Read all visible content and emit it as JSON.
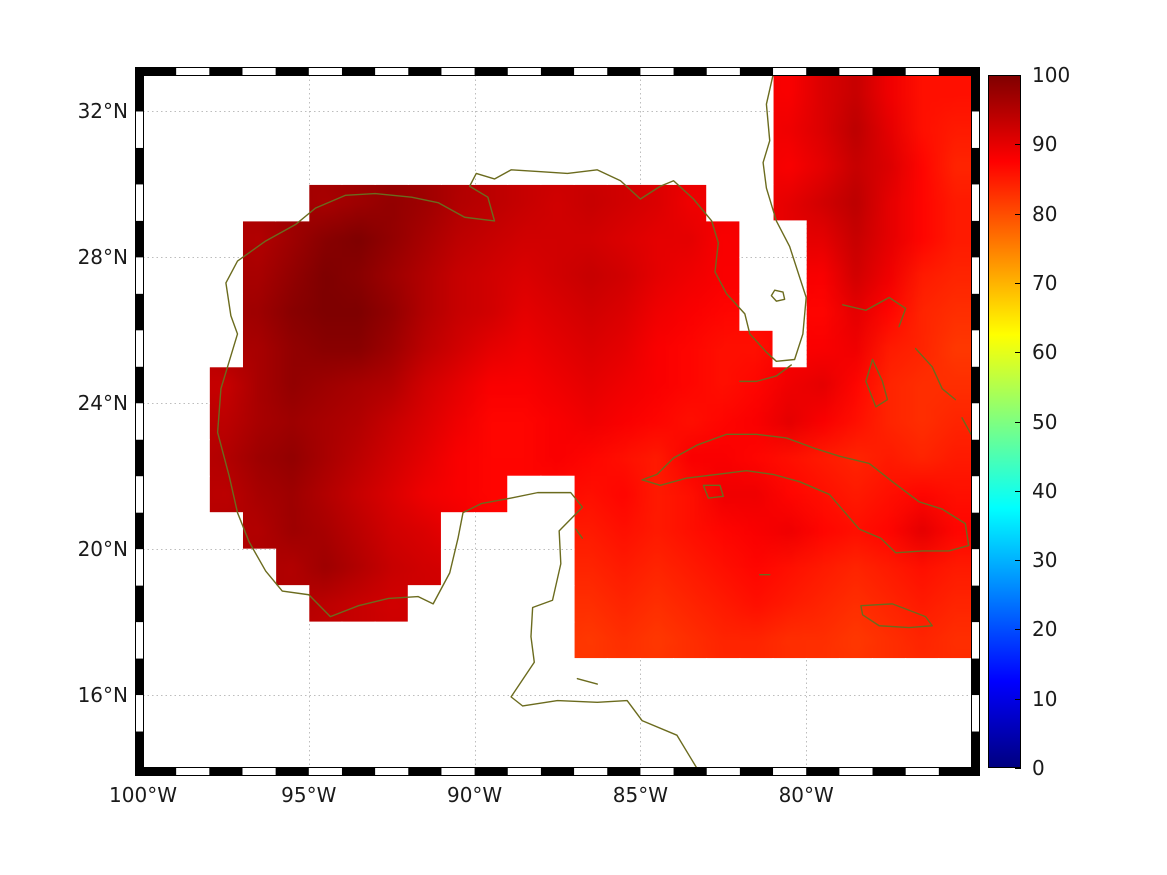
{
  "figure": {
    "background": "#ffffff",
    "frame_color": "#000000",
    "grid_color": "#bdbdbd",
    "coast_color": "#6b6b1e",
    "nodata_color": "#ffffff"
  },
  "axes": {
    "x": {
      "ticks": [
        {
          "lon": -100,
          "label": "100°W"
        },
        {
          "lon": -95,
          "label": "95°W"
        },
        {
          "lon": -90,
          "label": "90°W"
        },
        {
          "lon": -85,
          "label": "85°W"
        },
        {
          "lon": -80,
          "label": "80°W"
        }
      ]
    },
    "y": {
      "ticks": [
        {
          "lat": 32,
          "label": "32°N"
        },
        {
          "lat": 28,
          "label": "28°N"
        },
        {
          "lat": 24,
          "label": "24°N"
        },
        {
          "lat": 20,
          "label": "20°N"
        },
        {
          "lat": 16,
          "label": "16°N"
        }
      ]
    }
  },
  "colorbar": {
    "min": 0,
    "max": 100,
    "ticks": [
      0,
      10,
      20,
      30,
      40,
      50,
      60,
      70,
      80,
      90,
      100
    ],
    "colormap": "jet",
    "stops": [
      [
        0.0,
        "#00007f"
      ],
      [
        0.125,
        "#0000ff"
      ],
      [
        0.375,
        "#00ffff"
      ],
      [
        0.625,
        "#ffff00"
      ],
      [
        0.875,
        "#ff0000"
      ],
      [
        1.0,
        "#7f0000"
      ]
    ]
  },
  "chart_data": {
    "type": "heatmap",
    "region": "Gulf of Mexico and northwestern Caribbean",
    "value_range": [
      0,
      100
    ],
    "colormap": "jet",
    "grid_on": true,
    "legend_position": "right-colorbar",
    "extent": {
      "lon_min": -100,
      "lon_max": -75,
      "lat_min": 14,
      "lat_max": 33
    },
    "grid": {
      "lon0": -100,
      "dlon": 1,
      "lat0": 33,
      "dlat": -1,
      "ncols": 25,
      "nrows": 19,
      "values": [
        [
          null,
          null,
          null,
          null,
          null,
          null,
          null,
          null,
          null,
          null,
          null,
          null,
          null,
          null,
          null,
          null,
          null,
          null,
          null,
          88,
          91,
          93,
          89,
          86,
          86
        ],
        [
          null,
          null,
          null,
          null,
          null,
          null,
          null,
          null,
          null,
          null,
          null,
          null,
          null,
          null,
          null,
          null,
          null,
          null,
          null,
          89,
          91,
          94,
          90,
          86,
          85
        ],
        [
          null,
          null,
          null,
          null,
          null,
          null,
          null,
          null,
          null,
          null,
          null,
          null,
          null,
          null,
          null,
          null,
          null,
          null,
          null,
          88,
          90,
          93,
          91,
          87,
          84
        ],
        [
          null,
          null,
          null,
          null,
          null,
          96,
          97,
          98,
          97,
          95,
          94,
          93,
          92,
          93,
          92,
          91,
          89,
          null,
          null,
          90,
          92,
          94,
          90,
          87,
          85
        ],
        [
          null,
          null,
          null,
          95,
          97,
          99,
          100,
          98,
          96,
          94,
          93,
          92,
          92,
          92,
          91,
          90,
          90,
          88,
          null,
          null,
          90,
          93,
          90,
          87,
          85
        ],
        [
          null,
          null,
          null,
          96,
          98,
          100,
          99,
          97,
          95,
          93,
          92,
          91,
          92,
          93,
          92,
          90,
          89,
          88,
          null,
          null,
          88,
          92,
          89,
          85,
          84
        ],
        [
          null,
          null,
          null,
          97,
          99,
          100,
          100,
          98,
          95,
          93,
          92,
          90,
          91,
          92,
          91,
          89,
          88,
          87,
          null,
          null,
          87,
          90,
          87,
          84,
          83
        ],
        [
          null,
          null,
          null,
          96,
          98,
          99,
          99,
          97,
          94,
          92,
          90,
          89,
          90,
          91,
          90,
          88,
          87,
          86,
          86,
          null,
          88,
          89,
          85,
          84,
          82
        ],
        [
          null,
          null,
          93,
          96,
          98,
          97,
          96,
          95,
          92,
          90,
          88,
          88,
          89,
          90,
          89,
          88,
          87,
          86,
          87,
          89,
          90,
          87,
          84,
          83,
          83
        ],
        [
          null,
          null,
          94,
          96,
          97,
          96,
          95,
          93,
          91,
          89,
          87,
          87,
          88,
          89,
          88,
          87,
          86,
          87,
          88,
          90,
          88,
          86,
          84,
          83,
          84
        ],
        [
          null,
          null,
          95,
          97,
          98,
          96,
          94,
          92,
          90,
          88,
          87,
          87,
          88,
          87,
          86,
          85,
          88,
          88,
          87,
          86,
          85,
          84,
          85,
          84,
          85
        ],
        [
          null,
          null,
          94,
          96,
          97,
          95,
          93,
          91,
          89,
          88,
          87,
          null,
          null,
          86,
          87,
          85,
          86,
          89,
          89,
          87,
          86,
          85,
          86,
          87,
          86
        ],
        [
          null,
          null,
          null,
          95,
          97,
          96,
          94,
          92,
          91,
          null,
          null,
          null,
          null,
          85,
          86,
          85,
          86,
          87,
          88,
          89,
          87,
          86,
          87,
          90,
          87
        ],
        [
          null,
          null,
          null,
          null,
          95,
          97,
          95,
          93,
          92,
          null,
          null,
          null,
          null,
          84,
          85,
          84,
          85,
          86,
          87,
          86,
          85,
          84,
          85,
          86,
          85
        ],
        [
          null,
          null,
          null,
          null,
          null,
          94,
          93,
          92,
          null,
          null,
          null,
          null,
          null,
          83,
          84,
          83,
          84,
          85,
          86,
          85,
          84,
          83,
          84,
          85,
          84
        ],
        [
          null,
          null,
          null,
          null,
          null,
          null,
          null,
          null,
          null,
          null,
          null,
          null,
          null,
          82,
          83,
          82,
          83,
          84,
          84,
          83,
          83,
          82,
          83,
          84,
          83
        ],
        [
          null,
          null,
          null,
          null,
          null,
          null,
          null,
          null,
          null,
          null,
          null,
          null,
          null,
          null,
          null,
          null,
          null,
          null,
          null,
          null,
          null,
          null,
          null,
          null,
          null
        ],
        [
          null,
          null,
          null,
          null,
          null,
          null,
          null,
          null,
          null,
          null,
          null,
          null,
          null,
          null,
          null,
          null,
          null,
          null,
          null,
          null,
          null,
          null,
          null,
          null,
          null
        ],
        [
          null,
          null,
          null,
          null,
          null,
          null,
          null,
          null,
          null,
          null,
          null,
          null,
          null,
          null,
          null,
          null,
          null,
          null,
          null,
          null,
          null,
          null,
          null,
          null,
          null
        ]
      ]
    },
    "coastlines": [
      {
        "name": "north-america-mainland",
        "points": [
          [
            -81.0,
            33.0
          ],
          [
            -81.2,
            32.2
          ],
          [
            -81.1,
            31.2
          ],
          [
            -81.3,
            30.6
          ],
          [
            -81.2,
            29.9
          ],
          [
            -80.9,
            29.0
          ],
          [
            -80.5,
            28.3
          ],
          [
            -80.0,
            26.9
          ],
          [
            -80.1,
            25.9
          ],
          [
            -80.35,
            25.2
          ],
          [
            -80.9,
            25.15
          ],
          [
            -81.2,
            25.4
          ],
          [
            -81.7,
            25.9
          ],
          [
            -81.85,
            26.45
          ],
          [
            -82.4,
            27.0
          ],
          [
            -82.75,
            27.6
          ],
          [
            -82.65,
            28.4
          ],
          [
            -82.85,
            29.0
          ],
          [
            -83.4,
            29.6
          ],
          [
            -84.0,
            30.1
          ],
          [
            -84.4,
            29.95
          ],
          [
            -85.0,
            29.6
          ],
          [
            -85.6,
            30.1
          ],
          [
            -86.3,
            30.4
          ],
          [
            -87.2,
            30.3
          ],
          [
            -88.0,
            30.35
          ],
          [
            -88.9,
            30.4
          ],
          [
            -89.4,
            30.15
          ],
          [
            -89.95,
            30.3
          ],
          [
            -90.15,
            29.95
          ],
          [
            -89.6,
            29.65
          ],
          [
            -89.4,
            29.0
          ],
          [
            -90.3,
            29.1
          ],
          [
            -91.1,
            29.5
          ],
          [
            -91.9,
            29.65
          ],
          [
            -93.0,
            29.75
          ],
          [
            -93.9,
            29.7
          ],
          [
            -94.8,
            29.35
          ],
          [
            -95.4,
            28.9
          ],
          [
            -96.3,
            28.45
          ],
          [
            -97.15,
            27.9
          ],
          [
            -97.5,
            27.3
          ],
          [
            -97.35,
            26.4
          ],
          [
            -97.15,
            25.9
          ],
          [
            -97.65,
            24.4
          ],
          [
            -97.75,
            23.2
          ],
          [
            -97.4,
            22.0
          ],
          [
            -97.15,
            21.0
          ],
          [
            -96.8,
            20.2
          ],
          [
            -96.3,
            19.4
          ],
          [
            -95.8,
            18.85
          ],
          [
            -95.0,
            18.75
          ],
          [
            -94.35,
            18.15
          ],
          [
            -93.5,
            18.45
          ],
          [
            -92.6,
            18.65
          ],
          [
            -91.7,
            18.7
          ],
          [
            -91.25,
            18.5
          ],
          [
            -90.75,
            19.35
          ],
          [
            -90.5,
            20.3
          ],
          [
            -90.35,
            21.0
          ],
          [
            -89.8,
            21.25
          ],
          [
            -88.9,
            21.4
          ],
          [
            -88.1,
            21.55
          ],
          [
            -87.1,
            21.55
          ],
          [
            -86.75,
            21.15
          ],
          [
            -87.45,
            20.5
          ],
          [
            -87.4,
            19.6
          ],
          [
            -87.65,
            18.6
          ],
          [
            -88.25,
            18.4
          ],
          [
            -88.3,
            17.6
          ],
          [
            -88.2,
            16.9
          ],
          [
            -88.9,
            15.95
          ],
          [
            -88.55,
            15.7
          ],
          [
            -87.5,
            15.85
          ],
          [
            -86.3,
            15.8
          ],
          [
            -85.4,
            15.85
          ],
          [
            -84.95,
            15.3
          ],
          [
            -83.9,
            14.9
          ],
          [
            -83.5,
            14.3
          ],
          [
            -83.3,
            14.0
          ]
        ]
      },
      {
        "name": "lake-okeechobee",
        "points": [
          [
            -80.95,
            27.1
          ],
          [
            -80.7,
            27.05
          ],
          [
            -80.65,
            26.85
          ],
          [
            -80.9,
            26.8
          ],
          [
            -81.05,
            26.95
          ],
          [
            -80.95,
            27.1
          ]
        ]
      },
      {
        "name": "florida-keys",
        "points": [
          [
            -80.45,
            25.05
          ],
          [
            -80.9,
            24.75
          ],
          [
            -81.5,
            24.6
          ],
          [
            -82.0,
            24.6
          ]
        ]
      },
      {
        "name": "cuba",
        "points": [
          [
            -84.95,
            21.9
          ],
          [
            -84.5,
            22.05
          ],
          [
            -84.0,
            22.5
          ],
          [
            -83.3,
            22.85
          ],
          [
            -82.4,
            23.15
          ],
          [
            -81.5,
            23.15
          ],
          [
            -80.6,
            23.05
          ],
          [
            -79.7,
            22.75
          ],
          [
            -79.0,
            22.55
          ],
          [
            -78.1,
            22.35
          ],
          [
            -77.4,
            21.85
          ],
          [
            -76.6,
            21.3
          ],
          [
            -75.9,
            21.1
          ],
          [
            -75.2,
            20.7
          ],
          [
            -75.1,
            20.1
          ],
          [
            -75.7,
            19.95
          ],
          [
            -76.5,
            19.95
          ],
          [
            -77.3,
            19.9
          ],
          [
            -77.75,
            20.3
          ],
          [
            -78.4,
            20.55
          ],
          [
            -79.3,
            21.5
          ],
          [
            -80.2,
            21.85
          ],
          [
            -81.0,
            22.05
          ],
          [
            -81.8,
            22.15
          ],
          [
            -82.7,
            22.05
          ],
          [
            -83.6,
            21.95
          ],
          [
            -84.4,
            21.75
          ],
          [
            -84.95,
            21.9
          ]
        ]
      },
      {
        "name": "isle-of-youth",
        "points": [
          [
            -83.1,
            21.75
          ],
          [
            -82.6,
            21.75
          ],
          [
            -82.5,
            21.45
          ],
          [
            -82.95,
            21.4
          ],
          [
            -83.1,
            21.75
          ]
        ]
      },
      {
        "name": "jamaica",
        "points": [
          [
            -78.35,
            18.45
          ],
          [
            -77.4,
            18.5
          ],
          [
            -76.4,
            18.15
          ],
          [
            -76.2,
            17.9
          ],
          [
            -76.9,
            17.85
          ],
          [
            -77.8,
            17.9
          ],
          [
            -78.3,
            18.2
          ],
          [
            -78.35,
            18.45
          ]
        ]
      },
      {
        "name": "grand-bahama-abaco",
        "points": [
          [
            -78.9,
            26.7
          ],
          [
            -78.2,
            26.55
          ],
          [
            -77.5,
            26.9
          ],
          [
            -77.0,
            26.6
          ],
          [
            -77.2,
            26.1
          ]
        ]
      },
      {
        "name": "andros",
        "points": [
          [
            -78.0,
            25.2
          ],
          [
            -77.7,
            24.6
          ],
          [
            -77.55,
            24.1
          ],
          [
            -77.9,
            23.9
          ],
          [
            -78.2,
            24.6
          ],
          [
            -78.0,
            25.2
          ]
        ]
      },
      {
        "name": "eleuthera-cat-island",
        "points": [
          [
            -76.7,
            25.5
          ],
          [
            -76.2,
            25.0
          ],
          [
            -75.9,
            24.4
          ],
          [
            -75.5,
            24.1
          ]
        ]
      },
      {
        "name": "long-island-bahamas",
        "points": [
          [
            -75.3,
            23.6
          ],
          [
            -75.0,
            23.1
          ]
        ]
      },
      {
        "name": "grand-cayman",
        "points": [
          [
            -81.4,
            19.3
          ],
          [
            -81.1,
            19.3
          ]
        ]
      },
      {
        "name": "cozumel",
        "points": [
          [
            -86.95,
            20.55
          ],
          [
            -86.75,
            20.3
          ]
        ]
      },
      {
        "name": "bay-islands-honduras",
        "points": [
          [
            -86.9,
            16.45
          ],
          [
            -86.3,
            16.3
          ]
        ]
      }
    ]
  }
}
